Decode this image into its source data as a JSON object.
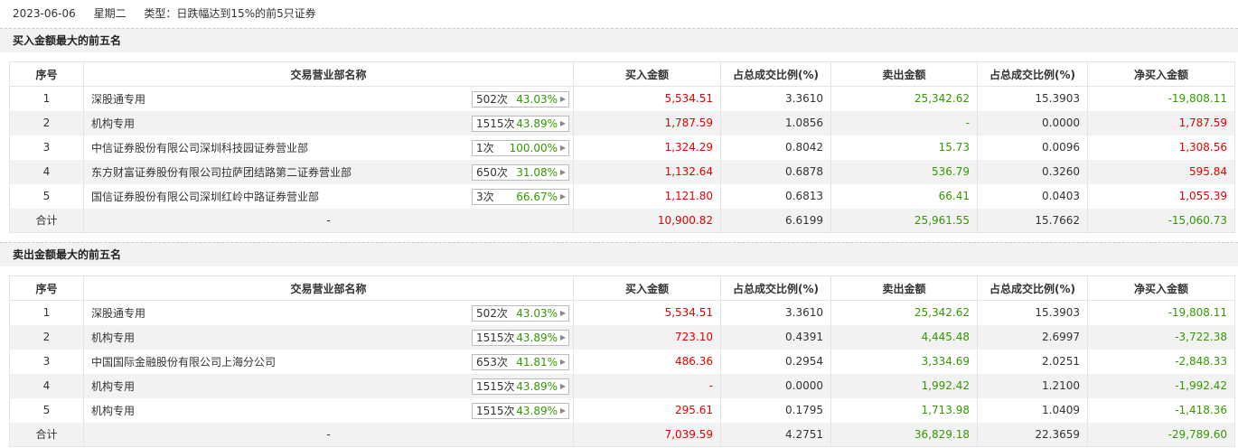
{
  "header": {
    "date": "2023-06-06",
    "weekday": "星期二",
    "type_text": "类型：日跌幅达到15%的前5只证券"
  },
  "columns": [
    "序号",
    "交易营业部名称",
    "买入金额",
    "占总成交比例(%)",
    "卖出金额",
    "占总成交比例(%)",
    "净买入金额"
  ],
  "colors": {
    "up": "#e60000",
    "down": "#339900"
  },
  "buy_section": {
    "title": "买入金额最大的前五名",
    "rows": [
      {
        "idx": "1",
        "name": "深股通专用",
        "count": "502次",
        "pct": "43.03%",
        "buy": "5,534.51",
        "buy_ratio": "3.3610",
        "sell": "25,342.62",
        "sell_ratio": "15.3903",
        "net": "-19,808.11",
        "net_dir": "down"
      },
      {
        "idx": "2",
        "name": "机构专用",
        "count": "1515次",
        "pct": "43.89%",
        "buy": "1,787.59",
        "buy_ratio": "1.0856",
        "sell": "-",
        "sell_ratio": "0.0000",
        "net": "1,787.59",
        "net_dir": "up"
      },
      {
        "idx": "3",
        "name": "中信证券股份有限公司深圳科技园证券营业部",
        "count": "1次",
        "pct": "100.00%",
        "buy": "1,324.29",
        "buy_ratio": "0.8042",
        "sell": "15.73",
        "sell_ratio": "0.0096",
        "net": "1,308.56",
        "net_dir": "up"
      },
      {
        "idx": "4",
        "name": "东方财富证券股份有限公司拉萨团结路第二证券营业部",
        "count": "650次",
        "pct": "31.08%",
        "buy": "1,132.64",
        "buy_ratio": "0.6878",
        "sell": "536.79",
        "sell_ratio": "0.3260",
        "net": "595.84",
        "net_dir": "up"
      },
      {
        "idx": "5",
        "name": "国信证券股份有限公司深圳红岭中路证券营业部",
        "count": "3次",
        "pct": "66.67%",
        "buy": "1,121.80",
        "buy_ratio": "0.6813",
        "sell": "66.41",
        "sell_ratio": "0.0403",
        "net": "1,055.39",
        "net_dir": "up"
      }
    ],
    "total": {
      "label": "合计",
      "name": "-",
      "buy": "10,900.82",
      "buy_ratio": "6.6199",
      "sell": "25,961.55",
      "sell_ratio": "15.7662",
      "net": "-15,060.73",
      "net_dir": "down"
    }
  },
  "sell_section": {
    "title": "卖出金额最大的前五名",
    "rows": [
      {
        "idx": "1",
        "name": "深股通专用",
        "count": "502次",
        "pct": "43.03%",
        "buy": "5,534.51",
        "buy_ratio": "3.3610",
        "sell": "25,342.62",
        "sell_ratio": "15.3903",
        "net": "-19,808.11",
        "net_dir": "down"
      },
      {
        "idx": "2",
        "name": "机构专用",
        "count": "1515次",
        "pct": "43.89%",
        "buy": "723.10",
        "buy_ratio": "0.4391",
        "sell": "4,445.48",
        "sell_ratio": "2.6997",
        "net": "-3,722.38",
        "net_dir": "down"
      },
      {
        "idx": "3",
        "name": "中国国际金融股份有限公司上海分公司",
        "count": "653次",
        "pct": "41.81%",
        "buy": "486.36",
        "buy_ratio": "0.2954",
        "sell": "3,334.69",
        "sell_ratio": "2.0251",
        "net": "-2,848.33",
        "net_dir": "down"
      },
      {
        "idx": "4",
        "name": "机构专用",
        "count": "1515次",
        "pct": "43.89%",
        "buy": "-",
        "buy_ratio": "0.0000",
        "sell": "1,992.42",
        "sell_ratio": "1.2100",
        "net": "-1,992.42",
        "net_dir": "down"
      },
      {
        "idx": "5",
        "name": "机构专用",
        "count": "1515次",
        "pct": "43.89%",
        "buy": "295.61",
        "buy_ratio": "0.1795",
        "sell": "1,713.98",
        "sell_ratio": "1.0409",
        "net": "-1,418.36",
        "net_dir": "down"
      }
    ],
    "total": {
      "label": "合计",
      "name": "-",
      "buy": "7,039.59",
      "buy_ratio": "4.2751",
      "sell": "36,829.18",
      "sell_ratio": "22.3659",
      "net": "-29,789.60",
      "net_dir": "down"
    }
  }
}
